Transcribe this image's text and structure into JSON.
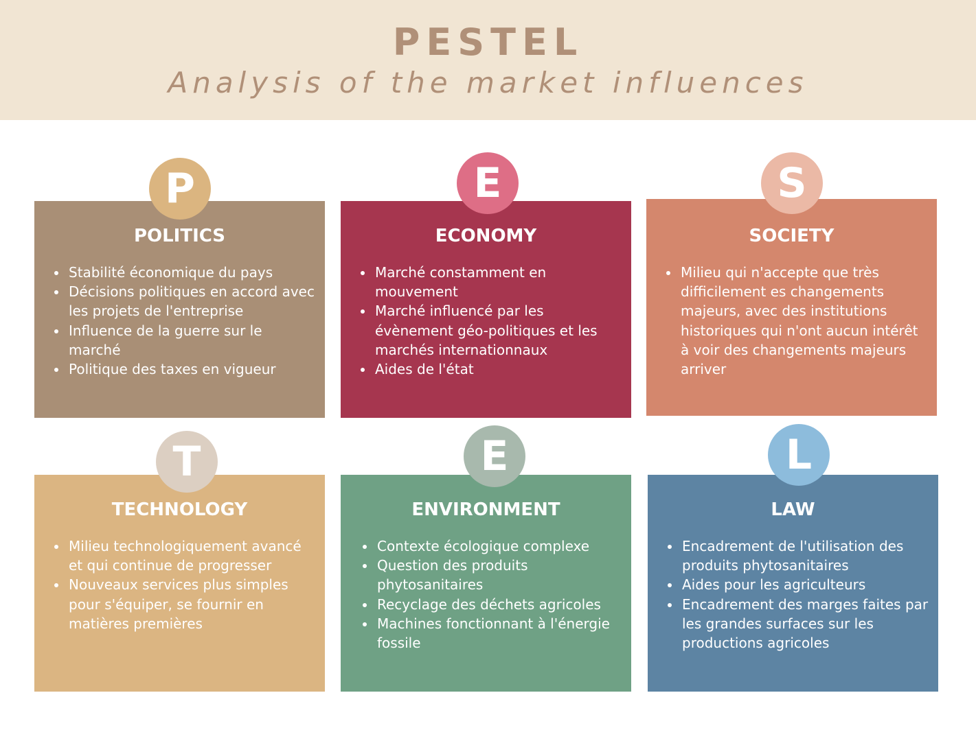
{
  "header": {
    "title": "PESTEL",
    "subtitle": "Analysis of the market influences"
  },
  "cards": [
    {
      "letter": "P",
      "title": "POLITICS",
      "card_color": "#a98f76",
      "circle_color": "#dbb580",
      "items": [
        "Stabilité économique du pays",
        "Décisions politiques en accord avec les projets de l'entreprise",
        "Influence de la guerre sur le marché",
        "Politique des taxes en vigueur"
      ]
    },
    {
      "letter": "E",
      "title": "ECONOMY",
      "card_color": "#a6364f",
      "circle_color": "#de6e86",
      "items": [
        "Marché constamment en mouvement",
        "Marché influencé par les évènement géo-politiques et les marchés internationnaux",
        "Aides de l'état"
      ]
    },
    {
      "letter": "S",
      "title": "SOCIETY",
      "card_color": "#d4876d",
      "circle_color": "#ebb9a6",
      "items": [
        "Milieu qui n'accepte que très difficilement es changements majeurs, avec des institutions historiques qui n'ont aucun intérêt à voir des changements majeurs arriver"
      ]
    },
    {
      "letter": "T",
      "title": "TECHNOLOGY",
      "card_color": "#dbb582",
      "circle_color": "#dccfc2",
      "items": [
        "Milieu technologiquement avancé et qui continue de progresser",
        "Nouveaux services plus simples pour s'équiper, se fournir en matières premières"
      ]
    },
    {
      "letter": "E",
      "title": "ENVIRONMENT",
      "card_color": "#6fa185",
      "circle_color": "#a8b9ad",
      "items": [
        "Contexte écologique complexe",
        "Question des produits phytosanitaires",
        "Recyclage des déchets agricoles",
        "Machines fonctionnant à l'énergie fossile"
      ]
    },
    {
      "letter": "L",
      "title": "LAW",
      "card_color": "#5d84a3",
      "circle_color": "#8dbcdc",
      "items": [
        "Encadrement de l'utilisation des produits phytosanitaires",
        "Aides pour les agriculteurs",
        "Encadrement des marges faites par les grandes surfaces sur les productions agricoles"
      ]
    }
  ]
}
